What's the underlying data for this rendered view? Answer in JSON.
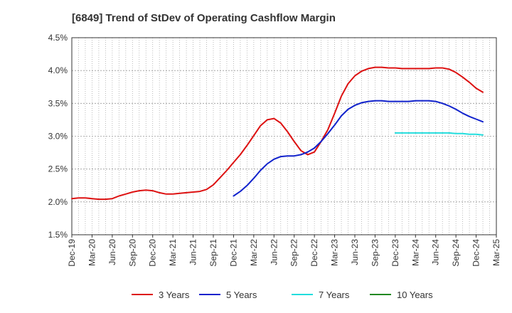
{
  "chart_data": {
    "type": "line",
    "title": "[6849]  Trend of StDev of Operating Cashflow Margin",
    "xlabel": "",
    "ylabel": "",
    "x_range": [
      "Dec-19",
      "Mar-25"
    ],
    "ylim": [
      1.5,
      4.5
    ],
    "y_ticks": [
      1.5,
      2.0,
      2.5,
      3.0,
      3.5,
      4.0,
      4.5
    ],
    "y_tick_labels": [
      "1.5%",
      "2.0%",
      "2.5%",
      "3.0%",
      "3.5%",
      "4.0%",
      "4.5%"
    ],
    "x_tick_labels": [
      "Dec-19",
      "Mar-20",
      "Jun-20",
      "Sep-20",
      "Dec-20",
      "Mar-21",
      "Jun-21",
      "Sep-21",
      "Dec-21",
      "Mar-22",
      "Jun-22",
      "Sep-22",
      "Dec-22",
      "Mar-23",
      "Jun-23",
      "Sep-23",
      "Dec-23",
      "Mar-24",
      "Jun-24",
      "Sep-24",
      "Dec-24",
      "Mar-25"
    ],
    "grid": true,
    "legend_position": "bottom",
    "series": [
      {
        "name": "3 Years",
        "color": "#dd1111",
        "points": [
          [
            "Dec-19",
            2.05
          ],
          [
            "Jan-20",
            2.06
          ],
          [
            "Feb-20",
            2.06
          ],
          [
            "Mar-20",
            2.05
          ],
          [
            "Apr-20",
            2.04
          ],
          [
            "May-20",
            2.04
          ],
          [
            "Jun-20",
            2.05
          ],
          [
            "Jul-20",
            2.09
          ],
          [
            "Aug-20",
            2.12
          ],
          [
            "Sep-20",
            2.15
          ],
          [
            "Oct-20",
            2.17
          ],
          [
            "Nov-20",
            2.18
          ],
          [
            "Dec-20",
            2.17
          ],
          [
            "Jan-21",
            2.14
          ],
          [
            "Feb-21",
            2.12
          ],
          [
            "Mar-21",
            2.12
          ],
          [
            "Apr-21",
            2.13
          ],
          [
            "May-21",
            2.14
          ],
          [
            "Jun-21",
            2.15
          ],
          [
            "Jul-21",
            2.16
          ],
          [
            "Aug-21",
            2.19
          ],
          [
            "Sep-21",
            2.26
          ],
          [
            "Oct-21",
            2.37
          ],
          [
            "Nov-21",
            2.48
          ],
          [
            "Dec-21",
            2.6
          ],
          [
            "Jan-22",
            2.72
          ],
          [
            "Feb-22",
            2.86
          ],
          [
            "Mar-22",
            3.01
          ],
          [
            "Apr-22",
            3.16
          ],
          [
            "May-22",
            3.25
          ],
          [
            "Jun-22",
            3.27
          ],
          [
            "Jul-22",
            3.2
          ],
          [
            "Aug-22",
            3.07
          ],
          [
            "Sep-22",
            2.92
          ],
          [
            "Oct-22",
            2.78
          ],
          [
            "Nov-22",
            2.72
          ],
          [
            "Dec-22",
            2.76
          ],
          [
            "Jan-23",
            2.92
          ],
          [
            "Feb-23",
            3.1
          ],
          [
            "Mar-23",
            3.35
          ],
          [
            "Apr-23",
            3.61
          ],
          [
            "May-23",
            3.8
          ],
          [
            "Jun-23",
            3.92
          ],
          [
            "Jul-23",
            3.99
          ],
          [
            "Aug-23",
            4.03
          ],
          [
            "Sep-23",
            4.05
          ],
          [
            "Oct-23",
            4.05
          ],
          [
            "Nov-23",
            4.04
          ],
          [
            "Dec-23",
            4.04
          ],
          [
            "Jan-24",
            4.03
          ],
          [
            "Feb-24",
            4.03
          ],
          [
            "Mar-24",
            4.03
          ],
          [
            "Apr-24",
            4.03
          ],
          [
            "May-24",
            4.03
          ],
          [
            "Jun-24",
            4.04
          ],
          [
            "Jul-24",
            4.04
          ],
          [
            "Aug-24",
            4.02
          ],
          [
            "Sep-24",
            3.97
          ],
          [
            "Oct-24",
            3.9
          ],
          [
            "Nov-24",
            3.82
          ],
          [
            "Dec-24",
            3.73
          ],
          [
            "Jan-25",
            3.67
          ]
        ]
      },
      {
        "name": "5 Years",
        "color": "#1122cc",
        "points": [
          [
            "Dec-21",
            2.09
          ],
          [
            "Jan-22",
            2.16
          ],
          [
            "Feb-22",
            2.25
          ],
          [
            "Mar-22",
            2.36
          ],
          [
            "Apr-22",
            2.48
          ],
          [
            "May-22",
            2.58
          ],
          [
            "Jun-22",
            2.65
          ],
          [
            "Jul-22",
            2.69
          ],
          [
            "Aug-22",
            2.7
          ],
          [
            "Sep-22",
            2.7
          ],
          [
            "Oct-22",
            2.72
          ],
          [
            "Nov-22",
            2.76
          ],
          [
            "Dec-22",
            2.82
          ],
          [
            "Jan-23",
            2.92
          ],
          [
            "Feb-23",
            3.04
          ],
          [
            "Mar-23",
            3.17
          ],
          [
            "Apr-23",
            3.31
          ],
          [
            "May-23",
            3.41
          ],
          [
            "Jun-23",
            3.47
          ],
          [
            "Jul-23",
            3.51
          ],
          [
            "Aug-23",
            3.53
          ],
          [
            "Sep-23",
            3.54
          ],
          [
            "Oct-23",
            3.54
          ],
          [
            "Nov-23",
            3.53
          ],
          [
            "Dec-23",
            3.53
          ],
          [
            "Jan-24",
            3.53
          ],
          [
            "Feb-24",
            3.53
          ],
          [
            "Mar-24",
            3.54
          ],
          [
            "Apr-24",
            3.54
          ],
          [
            "May-24",
            3.54
          ],
          [
            "Jun-24",
            3.53
          ],
          [
            "Jul-24",
            3.5
          ],
          [
            "Aug-24",
            3.46
          ],
          [
            "Sep-24",
            3.41
          ],
          [
            "Oct-24",
            3.35
          ],
          [
            "Nov-24",
            3.3
          ],
          [
            "Dec-24",
            3.26
          ],
          [
            "Jan-25",
            3.22
          ]
        ]
      },
      {
        "name": "7 Years",
        "color": "#22dddd",
        "points": [
          [
            "Dec-23",
            3.05
          ],
          [
            "Jan-24",
            3.05
          ],
          [
            "Feb-24",
            3.05
          ],
          [
            "Mar-24",
            3.05
          ],
          [
            "Apr-24",
            3.05
          ],
          [
            "May-24",
            3.05
          ],
          [
            "Jun-24",
            3.05
          ],
          [
            "Jul-24",
            3.05
          ],
          [
            "Aug-24",
            3.05
          ],
          [
            "Sep-24",
            3.04
          ],
          [
            "Oct-24",
            3.04
          ],
          [
            "Nov-24",
            3.03
          ],
          [
            "Dec-24",
            3.03
          ],
          [
            "Jan-25",
            3.02
          ]
        ]
      },
      {
        "name": "10 Years",
        "color": "#228822",
        "points": []
      }
    ]
  }
}
